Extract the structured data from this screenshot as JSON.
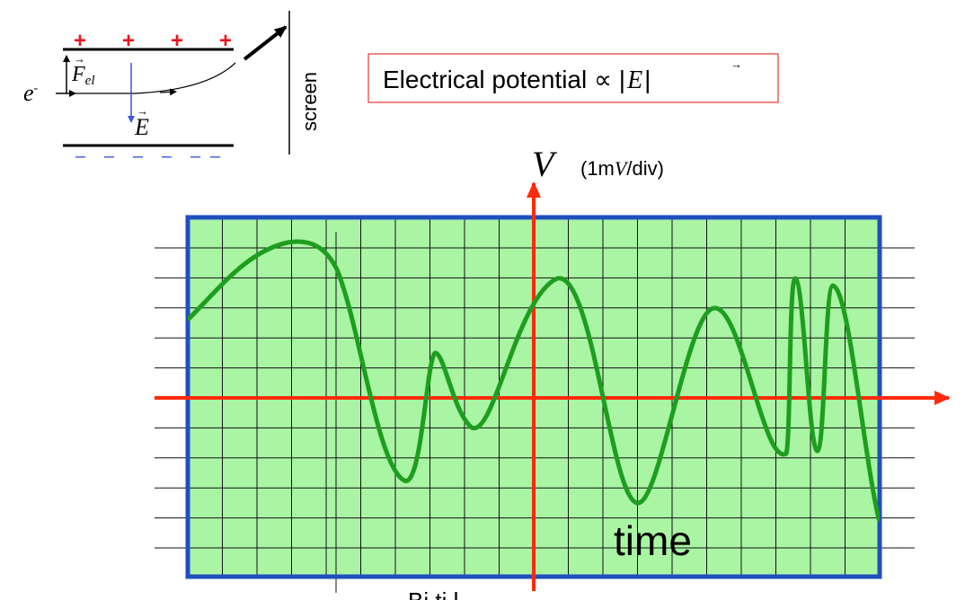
{
  "tube": {
    "plus_sign": "+",
    "minus_sign": "–",
    "electron_base": "e",
    "electron_sup": "-",
    "force_base": "F",
    "force_sub": "el",
    "field_label": "E",
    "screen_label": "screen"
  },
  "formula": {
    "text": "Electrical potential ∝ |",
    "symbol": "E",
    "close": "|"
  },
  "axis": {
    "y_symbol": "V",
    "unit_open": "(1m",
    "unit_symbol": "V",
    "unit_close": "/div)",
    "x_label": "time",
    "clipped_caption": "Bi ti l"
  },
  "colors": {
    "screen_fill": "#a9f5a4",
    "screen_border": "#1f4fbf",
    "axis": "#ff2a0a",
    "trace": "#1e9e1e",
    "plus": "#e8141e",
    "minus": "#3b56d8",
    "field_arrow": "#3b56d8"
  }
}
